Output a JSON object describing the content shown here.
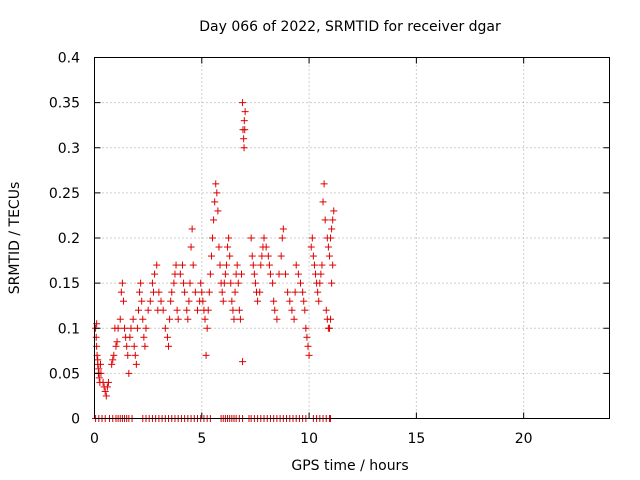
{
  "chart_data": {
    "type": "scatter",
    "title": "Day 066 of 2022, SRMTID for receiver dgar",
    "xlabel": "GPS time / hours",
    "ylabel": "SRMTID / TECUs",
    "xlim": [
      0,
      24
    ],
    "ylim": [
      0,
      0.4
    ],
    "xticks": [
      0,
      5,
      10,
      15,
      20
    ],
    "yticks": [
      0,
      0.05,
      0.1,
      0.15,
      0.2,
      0.25,
      0.3,
      0.35,
      0.4
    ],
    "xtick_labels": [
      "0",
      "5",
      "10",
      "15",
      "20"
    ],
    "ytick_labels": [
      "0",
      "0.05",
      "0.1",
      "0.15",
      "0.2",
      "0.25",
      "0.3",
      "0.35",
      "0.4"
    ],
    "grid": true,
    "marker": "+",
    "color": "#dd0000",
    "series": [
      {
        "name": "SRMTID",
        "points": [
          [
            0.05,
            0.1
          ],
          [
            0.08,
            0.09
          ],
          [
            0.1,
            0.08
          ],
          [
            0.12,
            0.07
          ],
          [
            0.15,
            0.06
          ],
          [
            0.18,
            0.05
          ],
          [
            0.2,
            0.05
          ],
          [
            0.22,
            0.045
          ],
          [
            0.25,
            0.04
          ],
          [
            0.28,
            0.06
          ],
          [
            0.3,
            0.05
          ],
          [
            0.1,
            0.105
          ],
          [
            0.15,
            0.065
          ],
          [
            0.2,
            0.055
          ],
          [
            0.4,
            0.04
          ],
          [
            0.45,
            0.035
          ],
          [
            0.5,
            0.03
          ],
          [
            0.55,
            0.025
          ],
          [
            0.6,
            0.035
          ],
          [
            0.65,
            0.04
          ],
          [
            0.8,
            0.06
          ],
          [
            0.85,
            0.065
          ],
          [
            0.9,
            0.07
          ],
          [
            1.0,
            0.08
          ],
          [
            1.05,
            0.085
          ],
          [
            1.1,
            0.1
          ],
          [
            0.95,
            0.1
          ],
          [
            1.2,
            0.11
          ],
          [
            1.25,
            0.14
          ],
          [
            1.3,
            0.15
          ],
          [
            1.35,
            0.13
          ],
          [
            1.4,
            0.1
          ],
          [
            1.45,
            0.09
          ],
          [
            1.5,
            0.08
          ],
          [
            1.55,
            0.07
          ],
          [
            1.6,
            0.05
          ],
          [
            1.65,
            0.09
          ],
          [
            1.7,
            0.1
          ],
          [
            1.8,
            0.11
          ],
          [
            1.85,
            0.08
          ],
          [
            1.9,
            0.07
          ],
          [
            1.95,
            0.06
          ],
          [
            2.0,
            0.1
          ],
          [
            2.05,
            0.12
          ],
          [
            2.1,
            0.14
          ],
          [
            2.15,
            0.15
          ],
          [
            2.2,
            0.13
          ],
          [
            2.25,
            0.11
          ],
          [
            2.3,
            0.09
          ],
          [
            2.35,
            0.08
          ],
          [
            2.4,
            0.1
          ],
          [
            2.5,
            0.12
          ],
          [
            2.6,
            0.13
          ],
          [
            2.7,
            0.15
          ],
          [
            2.75,
            0.14
          ],
          [
            2.8,
            0.16
          ],
          [
            2.9,
            0.17
          ],
          [
            2.95,
            0.12
          ],
          [
            3.0,
            0.14
          ],
          [
            3.1,
            0.13
          ],
          [
            3.2,
            0.12
          ],
          [
            3.3,
            0.1
          ],
          [
            3.4,
            0.09
          ],
          [
            3.45,
            0.08
          ],
          [
            3.5,
            0.11
          ],
          [
            3.55,
            0.13
          ],
          [
            3.6,
            0.14
          ],
          [
            3.7,
            0.15
          ],
          [
            3.75,
            0.16
          ],
          [
            3.8,
            0.17
          ],
          [
            3.85,
            0.12
          ],
          [
            3.9,
            0.11
          ],
          [
            4.0,
            0.16
          ],
          [
            4.1,
            0.17
          ],
          [
            4.15,
            0.15
          ],
          [
            4.2,
            0.14
          ],
          [
            4.3,
            0.12
          ],
          [
            4.35,
            0.11
          ],
          [
            4.4,
            0.13
          ],
          [
            4.45,
            0.15
          ],
          [
            4.5,
            0.19
          ],
          [
            4.55,
            0.21
          ],
          [
            4.6,
            0.17
          ],
          [
            4.7,
            0.14
          ],
          [
            4.8,
            0.12
          ],
          [
            4.9,
            0.13
          ],
          [
            4.95,
            0.15
          ],
          [
            5.0,
            0.14
          ],
          [
            5.05,
            0.13
          ],
          [
            5.1,
            0.12
          ],
          [
            5.15,
            0.11
          ],
          [
            5.2,
            0.07
          ],
          [
            5.25,
            0.1
          ],
          [
            5.3,
            0.12
          ],
          [
            5.35,
            0.14
          ],
          [
            5.4,
            0.16
          ],
          [
            5.45,
            0.18
          ],
          [
            5.5,
            0.2
          ],
          [
            5.55,
            0.22
          ],
          [
            5.6,
            0.24
          ],
          [
            5.65,
            0.26
          ],
          [
            5.7,
            0.25
          ],
          [
            5.75,
            0.23
          ],
          [
            5.8,
            0.19
          ],
          [
            5.85,
            0.17
          ],
          [
            5.9,
            0.15
          ],
          [
            5.95,
            0.14
          ],
          [
            6.0,
            0.13
          ],
          [
            6.05,
            0.15
          ],
          [
            6.1,
            0.16
          ],
          [
            6.15,
            0.17
          ],
          [
            6.2,
            0.19
          ],
          [
            6.25,
            0.2
          ],
          [
            6.3,
            0.18
          ],
          [
            6.35,
            0.15
          ],
          [
            6.4,
            0.13
          ],
          [
            6.45,
            0.12
          ],
          [
            6.5,
            0.11
          ],
          [
            6.55,
            0.14
          ],
          [
            6.6,
            0.16
          ],
          [
            6.65,
            0.17
          ],
          [
            6.7,
            0.15
          ],
          [
            6.75,
            0.12
          ],
          [
            6.8,
            0.11
          ],
          [
            6.85,
            0.16
          ],
          [
            6.9,
            0.35
          ],
          [
            6.92,
            0.32
          ],
          [
            6.95,
            0.31
          ],
          [
            6.97,
            0.3
          ],
          [
            7.0,
            0.32
          ],
          [
            6.98,
            0.33
          ],
          [
            7.02,
            0.34
          ],
          [
            6.9,
            0.063
          ],
          [
            7.3,
            0.2
          ],
          [
            7.35,
            0.18
          ],
          [
            7.4,
            0.17
          ],
          [
            7.45,
            0.16
          ],
          [
            7.5,
            0.15
          ],
          [
            7.55,
            0.14
          ],
          [
            7.6,
            0.13
          ],
          [
            7.7,
            0.14
          ],
          [
            7.75,
            0.17
          ],
          [
            7.8,
            0.18
          ],
          [
            7.85,
            0.19
          ],
          [
            7.9,
            0.2
          ],
          [
            8.0,
            0.19
          ],
          [
            8.1,
            0.18
          ],
          [
            8.15,
            0.17
          ],
          [
            8.2,
            0.16
          ],
          [
            8.3,
            0.15
          ],
          [
            8.35,
            0.13
          ],
          [
            8.4,
            0.12
          ],
          [
            8.5,
            0.11
          ],
          [
            8.6,
            0.16
          ],
          [
            8.7,
            0.18
          ],
          [
            8.75,
            0.2
          ],
          [
            8.8,
            0.21
          ],
          [
            8.9,
            0.16
          ],
          [
            9.0,
            0.14
          ],
          [
            9.1,
            0.13
          ],
          [
            9.2,
            0.12
          ],
          [
            9.3,
            0.11
          ],
          [
            9.35,
            0.14
          ],
          [
            9.4,
            0.17
          ],
          [
            9.5,
            0.16
          ],
          [
            9.6,
            0.15
          ],
          [
            9.7,
            0.14
          ],
          [
            9.75,
            0.13
          ],
          [
            9.8,
            0.12
          ],
          [
            9.85,
            0.1
          ],
          [
            9.9,
            0.09
          ],
          [
            9.95,
            0.08
          ],
          [
            10.0,
            0.07
          ],
          [
            10.1,
            0.19
          ],
          [
            10.15,
            0.2
          ],
          [
            10.2,
            0.18
          ],
          [
            10.25,
            0.17
          ],
          [
            10.3,
            0.16
          ],
          [
            10.35,
            0.15
          ],
          [
            10.4,
            0.14
          ],
          [
            10.45,
            0.13
          ],
          [
            10.5,
            0.15
          ],
          [
            10.55,
            0.16
          ],
          [
            10.6,
            0.17
          ],
          [
            10.65,
            0.24
          ],
          [
            10.7,
            0.26
          ],
          [
            10.75,
            0.22
          ],
          [
            10.8,
            0.12
          ],
          [
            10.85,
            0.11
          ],
          [
            10.9,
            0.1
          ],
          [
            10.95,
            0.1
          ],
          [
            11.0,
            0.11
          ],
          [
            10.85,
            0.2
          ],
          [
            10.9,
            0.19
          ],
          [
            10.95,
            0.18
          ],
          [
            11.0,
            0.2
          ],
          [
            11.05,
            0.21
          ],
          [
            11.1,
            0.22
          ],
          [
            11.15,
            0.23
          ],
          [
            11.05,
            0.15
          ],
          [
            11.1,
            0.17
          ]
        ],
        "zero_times": [
          0.05,
          0.2,
          0.35,
          0.5,
          0.7,
          0.85,
          1.0,
          1.1,
          1.2,
          1.3,
          1.4,
          1.5,
          1.6,
          1.75,
          2.25,
          2.4,
          2.55,
          2.7,
          2.85,
          3.0,
          3.15,
          3.3,
          3.45,
          3.6,
          3.75,
          3.9,
          4.05,
          4.2,
          4.35,
          4.5,
          4.65,
          4.8,
          4.95,
          5.1,
          5.25,
          5.4,
          5.9,
          6.0,
          6.1,
          6.2,
          6.3,
          6.4,
          6.5,
          6.6,
          6.75,
          6.9,
          7.2,
          7.3,
          7.45,
          7.6,
          7.75,
          7.9,
          8.05,
          8.2,
          8.35,
          8.5,
          8.65,
          8.8,
          8.95,
          9.1,
          9.25,
          9.4,
          9.55,
          9.7,
          9.85,
          10.2,
          10.35,
          10.5,
          10.65,
          10.8,
          10.95,
          11.0
        ]
      }
    ]
  }
}
